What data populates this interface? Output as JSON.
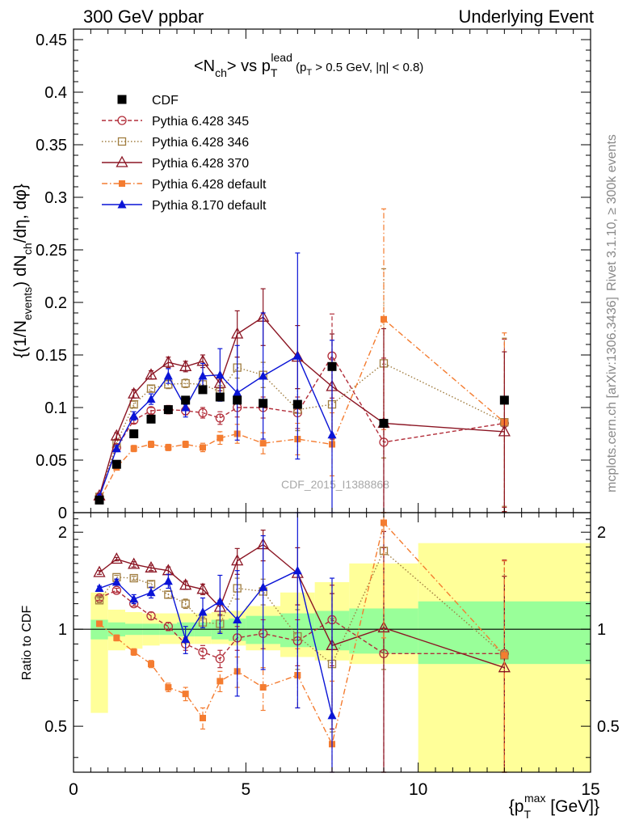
{
  "header": {
    "left": "300 GeV ppbar",
    "right": "Underlying Event"
  },
  "side_labels": {
    "rivet": "Rivet 3.1.10, ≥ 300k events",
    "mcplots": "mcplots.cern.ch [arXiv:1306.3436]"
  },
  "watermark": "CDF_2015_I1388868",
  "chart_data": [
    {
      "panel": "main",
      "type": "line",
      "title": "<N_ch> vs p_T^lead (p_T > 0.5 GeV, |η| < 0.8)",
      "title_parts": {
        "main": "<N",
        "ch_sub": "ch",
        "vs": "> vs p",
        "T_sub": "T",
        "lead_sup": "lead",
        "cuts_a": " (p",
        "cuts_T": "T",
        "cuts_b": " > 0.5 GeV, |η| < 0.8)"
      },
      "ylabel": "{(1/N_events) dN_ch/dη, dφ}",
      "ylabel_parts": {
        "a": "{(1/N",
        "events": "events",
        "b": ") dN",
        "ch": "ch",
        "c": "/dη, dφ}"
      },
      "xlim": [
        0,
        15
      ],
      "ylim": [
        0,
        0.46
      ],
      "yticks": [
        0,
        0.05,
        0.1,
        0.15,
        0.2,
        0.25,
        0.3,
        0.35,
        0.4,
        0.45
      ],
      "ytick_labels": [
        "0",
        "0.05",
        "0.1",
        "0.15",
        "0.2",
        "0.25",
        "0.3",
        "0.35",
        "0.4",
        "0.45"
      ],
      "legend_position": "top-left",
      "series": [
        {
          "name": "CDF",
          "color": "#000000",
          "marker": "filled-square",
          "line": "none",
          "x": [
            0.75,
            1.25,
            1.75,
            2.25,
            2.75,
            3.25,
            3.75,
            4.25,
            4.75,
            5.5,
            6.5,
            7.5,
            9,
            12.5
          ],
          "y": [
            0.012,
            0.046,
            0.075,
            0.089,
            0.098,
            0.107,
            0.117,
            0.11,
            0.107,
            0.104,
            0.103,
            0.139,
            0.085,
            0.107
          ]
        },
        {
          "name": "Pythia 6.428 345",
          "color": "#b22e3a",
          "marker": "open-circle",
          "line": "dashed",
          "x": [
            0.75,
            1.25,
            1.75,
            2.25,
            2.75,
            3.25,
            3.75,
            4.25,
            4.75,
            5.5,
            6.5,
            7.5,
            9,
            12.5
          ],
          "y": [
            0.015,
            0.062,
            0.088,
            0.097,
            0.098,
            0.097,
            0.095,
            0.09,
            0.1,
            0.1,
            0.095,
            0.149,
            0.067,
            0.085
          ],
          "err": [
            0.002,
            0.003,
            0.003,
            0.003,
            0.004,
            0.004,
            0.005,
            0.006,
            0.009,
            0.01,
            0.015,
            0.04,
            0.08,
            0.08
          ]
        },
        {
          "name": "Pythia 6.428 346",
          "color": "#a07d40",
          "marker": "open-square",
          "line": "dotted",
          "x": [
            0.75,
            1.25,
            1.75,
            2.25,
            2.75,
            3.25,
            3.75,
            4.25,
            4.75,
            5.5,
            6.5,
            7.5,
            9,
            12.5
          ],
          "y": [
            0.015,
            0.066,
            0.103,
            0.118,
            0.122,
            0.123,
            0.122,
            0.115,
            0.138,
            0.131,
            0.098,
            0.103,
            0.142,
            0.086
          ],
          "err": [
            0.002,
            0.003,
            0.003,
            0.003,
            0.004,
            0.004,
            0.005,
            0.006,
            0.01,
            0.012,
            0.02,
            0.04,
            0.09,
            0.08
          ]
        },
        {
          "name": "Pythia 6.428 370",
          "color": "#8b1523",
          "marker": "open-triangle",
          "line": "solid",
          "x": [
            0.75,
            1.25,
            1.75,
            2.25,
            2.75,
            3.25,
            3.75,
            4.25,
            4.75,
            5.5,
            6.5,
            7.5,
            9,
            12.5
          ],
          "y": [
            0.016,
            0.073,
            0.113,
            0.131,
            0.143,
            0.139,
            0.144,
            0.123,
            0.17,
            0.186,
            0.148,
            0.12,
            0.085,
            0.077
          ],
          "err": [
            0.002,
            0.003,
            0.004,
            0.004,
            0.005,
            0.005,
            0.006,
            0.007,
            0.022,
            0.027,
            0.03,
            0.05,
            0.09,
            0.076
          ]
        },
        {
          "name": "Pythia 6.428 default",
          "color": "#f47c30",
          "marker": "filled-square-small",
          "line": "dashdot",
          "x": [
            0.75,
            1.25,
            1.75,
            2.25,
            2.75,
            3.25,
            3.75,
            4.25,
            4.75,
            5.5,
            6.5,
            7.5,
            9,
            12.5
          ],
          "y": [
            0.012,
            0.043,
            0.061,
            0.065,
            0.062,
            0.065,
            0.062,
            0.071,
            0.075,
            0.066,
            0.07,
            0.065,
            0.184,
            0.086
          ],
          "err": [
            0.002,
            0.002,
            0.003,
            0.003,
            0.003,
            0.003,
            0.004,
            0.006,
            0.009,
            0.01,
            0.015,
            0.03,
            0.105,
            0.085
          ]
        },
        {
          "name": "Pythia 8.170 default",
          "color": "#0a14d6",
          "marker": "filled-triangle",
          "line": "solid",
          "x": [
            0.75,
            1.25,
            1.75,
            2.25,
            2.75,
            3.25,
            3.75,
            4.25,
            4.75,
            5.5,
            6.5,
            7.5
          ],
          "y": [
            0.015,
            0.061,
            0.092,
            0.108,
            0.13,
            0.1,
            0.13,
            0.131,
            0.114,
            0.13,
            0.149,
            0.074
          ],
          "err": [
            0.002,
            0.003,
            0.004,
            0.005,
            0.007,
            0.009,
            0.012,
            0.025,
            0.045,
            0.06,
            0.098,
            0.09
          ]
        }
      ]
    },
    {
      "panel": "ratio",
      "type": "line",
      "ylabel": "Ratio to CDF",
      "xlabel": "{p_T^max [GeV]}",
      "xlabel_parts": {
        "a": "{p",
        "T": "T",
        "max": "max",
        "b": " [GeV]}"
      },
      "xlim": [
        0,
        15
      ],
      "ylim": [
        0.36,
        2.3
      ],
      "ytick_major": [
        0.5,
        1,
        2
      ],
      "ytick_labels": [
        "0.5",
        "1",
        "2"
      ],
      "xticks": [
        0,
        5,
        10,
        15
      ],
      "xtick_labels": [
        "0",
        "5",
        "10",
        "15"
      ],
      "reference_line": 1,
      "bands": {
        "bin_edges": [
          0.5,
          1,
          1.5,
          2,
          2.5,
          3,
          3.5,
          4,
          4.5,
          5,
          6,
          7,
          8,
          10,
          15
        ],
        "inner": {
          "color": "#99ff99",
          "lo": [
            0.93,
            0.95,
            0.96,
            0.96,
            0.96,
            0.95,
            0.95,
            0.93,
            0.92,
            0.9,
            0.88,
            0.86,
            0.84,
            0.78,
            0.62
          ],
          "hi": [
            1.07,
            1.05,
            1.04,
            1.04,
            1.04,
            1.05,
            1.05,
            1.07,
            1.08,
            1.1,
            1.12,
            1.14,
            1.16,
            1.22,
            1.5
          ]
        },
        "outer": {
          "color": "#ffff99",
          "lo": [
            0.55,
            0.86,
            0.87,
            0.89,
            0.9,
            0.9,
            0.9,
            0.9,
            0.89,
            0.86,
            0.82,
            0.8,
            0.78,
            0.36,
            0.36
          ],
          "hi": [
            1.3,
            1.15,
            1.13,
            1.12,
            1.12,
            1.12,
            1.12,
            1.13,
            1.14,
            1.18,
            1.3,
            1.4,
            1.6,
            1.85,
            1.88
          ]
        }
      },
      "series": [
        {
          "name": "Pythia 6.428 345",
          "color": "#b22e3a",
          "marker": "open-circle",
          "line": "dashed",
          "x": [
            0.75,
            1.25,
            1.75,
            2.25,
            2.75,
            3.25,
            3.75,
            4.25,
            4.75,
            5.5,
            6.5,
            7.5,
            9,
            12.5
          ],
          "y": [
            1.25,
            1.32,
            1.2,
            1.1,
            1.02,
            0.9,
            0.85,
            0.81,
            0.94,
            0.97,
            0.92,
            1.07,
            0.84,
            0.84
          ],
          "err": [
            0.02,
            0.02,
            0.02,
            0.03,
            0.03,
            0.04,
            0.04,
            0.05,
            0.08,
            0.1,
            0.15,
            0.3,
            0.95,
            0.8
          ]
        },
        {
          "name": "Pythia 6.428 346",
          "color": "#a07d40",
          "marker": "open-square",
          "line": "dotted",
          "x": [
            0.75,
            1.25,
            1.75,
            2.25,
            2.75,
            3.25,
            3.75,
            4.25,
            4.75,
            5.5,
            6.5,
            7.5,
            9,
            12.5
          ],
          "y": [
            1.23,
            1.45,
            1.44,
            1.38,
            1.28,
            1.2,
            1.05,
            1.04,
            1.34,
            1.31,
            0.95,
            0.78,
            1.75,
            0.83
          ],
          "err": [
            0.02,
            0.02,
            0.02,
            0.03,
            0.03,
            0.04,
            0.04,
            0.06,
            0.1,
            0.12,
            0.2,
            0.3,
            1.0,
            0.8
          ]
        },
        {
          "name": "Pythia 6.428 370",
          "color": "#8b1523",
          "marker": "open-triangle",
          "line": "solid",
          "x": [
            0.75,
            1.25,
            1.75,
            2.25,
            2.75,
            3.25,
            3.75,
            4.25,
            4.75,
            5.5,
            6.5,
            7.5,
            9,
            12.5
          ],
          "y": [
            1.5,
            1.65,
            1.59,
            1.55,
            1.52,
            1.37,
            1.33,
            1.17,
            1.63,
            1.83,
            1.49,
            0.89,
            1.01,
            0.76
          ],
          "err": [
            0.02,
            0.02,
            0.03,
            0.03,
            0.04,
            0.04,
            0.05,
            0.06,
            0.15,
            0.2,
            0.3,
            0.4,
            1.0,
            0.7
          ]
        },
        {
          "name": "Pythia 6.428 default",
          "color": "#f47c30",
          "marker": "filled-square-small",
          "line": "dashdot",
          "x": [
            0.75,
            1.25,
            1.75,
            2.25,
            2.75,
            3.25,
            3.75,
            4.25,
            4.75,
            5.5,
            6.5,
            7.5,
            9,
            12.5
          ],
          "y": [
            1.04,
            0.94,
            0.85,
            0.78,
            0.66,
            0.63,
            0.53,
            0.69,
            0.74,
            0.66,
            0.72,
            0.44,
            2.14,
            0.83
          ],
          "err": [
            0.02,
            0.02,
            0.02,
            0.02,
            0.02,
            0.03,
            0.04,
            0.05,
            0.08,
            0.1,
            0.15,
            0.25,
            1.2,
            0.8
          ]
        },
        {
          "name": "Pythia 8.170 default",
          "color": "#0a14d6",
          "marker": "filled-triangle",
          "line": "solid",
          "x": [
            0.75,
            1.25,
            1.75,
            2.25,
            2.75,
            3.25,
            3.75,
            4.25,
            4.75,
            5.5,
            6.5,
            7.5
          ],
          "y": [
            1.34,
            1.4,
            1.24,
            1.3,
            1.41,
            0.93,
            1.13,
            1.22,
            1.07,
            1.35,
            1.52,
            0.54
          ],
          "err": [
            0.02,
            0.03,
            0.04,
            0.05,
            0.07,
            0.09,
            0.12,
            0.25,
            0.45,
            0.6,
            0.95,
            0.9
          ]
        }
      ]
    }
  ]
}
